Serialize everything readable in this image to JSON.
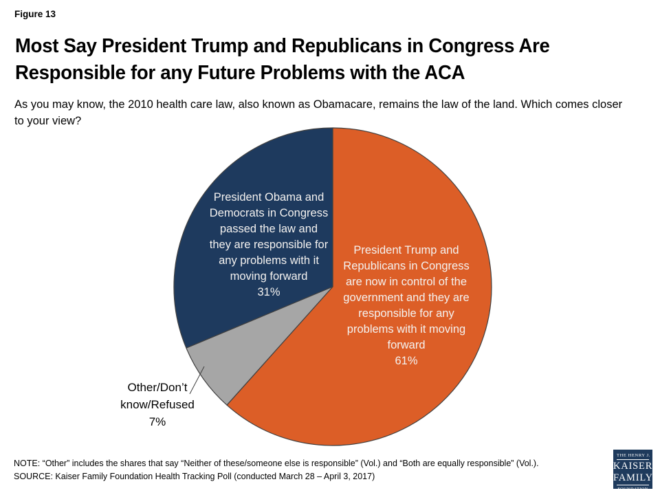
{
  "figure_label": "Figure 13",
  "header": {
    "title": "Most Say President Trump and Republicans in Congress Are\nResponsible for any Future Problems with the ACA",
    "subtitle": "As you may know, the 2010 health care law, also known as Obamacare, remains the law of the land. Which comes closer\nto your view?"
  },
  "chart_data": {
    "type": "pie",
    "title": "Most Say President Trump and Republicans in Congress Are Responsible for any Future Problems with the ACA",
    "question": "As you may know, the 2010 health care law, also known as Obamacare, remains the law of the land. Which comes closer to your view?",
    "start_angle": "12 o'clock, clockwise",
    "outline_color": "#404040",
    "slices": [
      {
        "name": "trump-republicans",
        "label": "President Trump and Republicans in Congress are now in control of the government and they are responsible for any problems with it moving forward",
        "value_pct": 61,
        "color": "#DC5E27",
        "label_color": "#FFFFFF",
        "label_placement": "inside"
      },
      {
        "name": "other-dk-refused",
        "label": "Other/Don’t know/Refused",
        "value_pct": 7,
        "color": "#A6A6A6",
        "label_color": "#000000",
        "label_placement": "outside"
      },
      {
        "name": "obama-democrats",
        "label": "President Obama and Democrats in Congress passed the law and they are responsible for any problems with it moving forward",
        "value_pct": 31,
        "color": "#1E3A5E",
        "label_color": "#FFFFFF",
        "label_placement": "inside"
      }
    ]
  },
  "pie_labels": {
    "obama": "President Obama and\nDemocrats in Congress\npassed the law and\nthey are responsible for\nany problems with it\nmoving forward\n31%",
    "trump": "President Trump and\nRepublicans in Congress\nare now in control of the\ngovernment and they are\nresponsible for any\nproblems with it moving\nforward\n61%",
    "other": "Other/Don’t\nknow/Refused\n7%"
  },
  "footer": {
    "note": "NOTE: “Other” includes the shares that say “Neither of these/someone else is responsible” (Vol.) and “Both are equally responsible” (Vol.).",
    "source": "SOURCE: Kaiser Family Foundation Health Tracking Poll (conducted March 28 – April 3, 2017)"
  },
  "logo": {
    "line1": "THE HENRY J.",
    "line2": "KAISER",
    "line3": "FAMILY",
    "line4": "FOUNDATION",
    "bg_color": "#1E3A5C"
  }
}
